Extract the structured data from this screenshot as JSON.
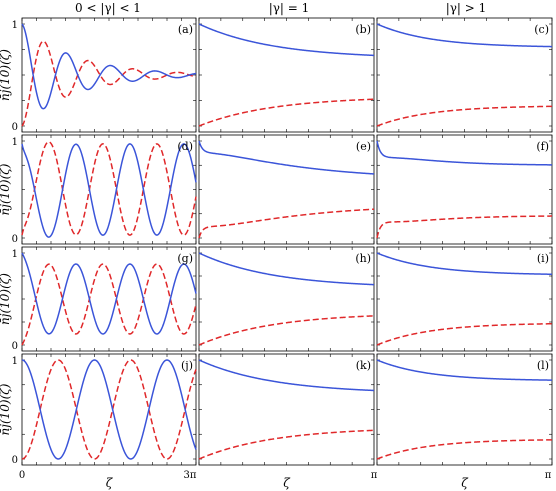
{
  "chart_data": {
    "type": "line",
    "column_headers": [
      "0 < |γ| < 1",
      "|γ| = 1",
      "|γ| > 1"
    ],
    "xlabel": "ζ",
    "ylabel": "n̄j(10)(ζ)",
    "y_ticks": [
      "0",
      "1"
    ],
    "x_ticks_left": [
      "0",
      "3π"
    ],
    "x_ticks_right": [
      "π"
    ],
    "ylim": [
      0,
      1
    ],
    "series_styles": {
      "solid": {
        "color": "#3b55d9",
        "dash": "none"
      },
      "dashed": {
        "color": "#e0282a",
        "dash": "6,3"
      }
    },
    "panels": [
      {
        "label": "(a)",
        "col": 0,
        "row": 0,
        "kind": "osc",
        "xmax": 9.4248,
        "omega": 2.6,
        "amp": 0.5,
        "decay": 0.35,
        "center": 0.5
      },
      {
        "label": "(b)",
        "col": 1,
        "row": 0,
        "kind": "relax",
        "xmax": 3.1416,
        "solid_end": 0.66,
        "dashed_end": 0.29,
        "rate": 0.75,
        "dip": 0
      },
      {
        "label": "(c)",
        "col": 2,
        "row": 0,
        "kind": "relax",
        "xmax": 3.1416,
        "solid_end": 0.77,
        "dashed_end": 0.2,
        "rate": 1.05,
        "dip": 0
      },
      {
        "label": "(d)",
        "col": 0,
        "row": 1,
        "kind": "osc",
        "xmax": 9.4248,
        "omega": 2.15,
        "amp": 0.47,
        "decay": 0,
        "center": 0.5,
        "kick": 0.12
      },
      {
        "label": "(e)",
        "col": 1,
        "row": 1,
        "kind": "relax",
        "xmax": 3.1416,
        "solid_end": 0.6,
        "dashed_end": 0.35,
        "rate": 0.6,
        "dip": 0.14
      },
      {
        "label": "(f)",
        "col": 2,
        "row": 1,
        "kind": "relax",
        "xmax": 3.1416,
        "solid_end": 0.75,
        "dashed_end": 0.23,
        "rate": 1.3,
        "dip": 0.2
      },
      {
        "label": "(g)",
        "col": 0,
        "row": 2,
        "kind": "osc",
        "xmax": 9.4248,
        "omega": 2.15,
        "amp": 0.38,
        "decay": 0,
        "center": 0.5,
        "start": 1.0
      },
      {
        "label": "(h)",
        "col": 1,
        "row": 2,
        "kind": "relax",
        "xmax": 3.1416,
        "solid_end": 0.62,
        "dashed_end": 0.35,
        "rate": 0.75,
        "dip": 0
      },
      {
        "label": "(i)",
        "col": 2,
        "row": 2,
        "kind": "relax",
        "xmax": 3.1416,
        "solid_end": 0.76,
        "dashed_end": 0.24,
        "rate": 1.05,
        "dip": 0
      },
      {
        "label": "(j)",
        "col": 0,
        "row": 3,
        "kind": "osc",
        "xmax": 9.4248,
        "omega": 1.6,
        "amp": 0.5,
        "decay": 0,
        "center": 0.5
      },
      {
        "label": "(k)",
        "col": 1,
        "row": 3,
        "kind": "relax",
        "xmax": 3.1416,
        "solid_end": 0.66,
        "dashed_end": 0.32,
        "rate": 0.75,
        "dip": 0
      },
      {
        "label": "(l)",
        "col": 2,
        "row": 3,
        "kind": "relax",
        "xmax": 3.1416,
        "solid_end": 0.79,
        "dashed_end": 0.2,
        "rate": 1.1,
        "dip": 0
      }
    ]
  }
}
